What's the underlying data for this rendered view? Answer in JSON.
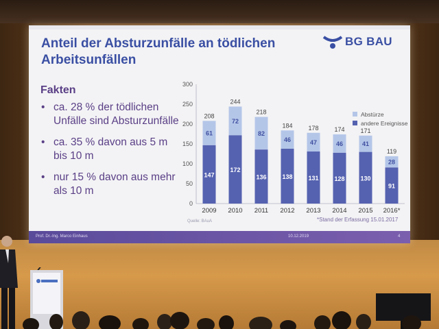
{
  "slide": {
    "title": "Anteil der Absturzunfälle an tödlichen Arbeitsunfällen",
    "logo_text": "BG BAU",
    "logo_icon": "bg-bau-logo-icon",
    "facts_heading": "Fakten",
    "bullets": [
      "ca. 28 % der tödlichen Unfälle sind Absturzunfälle",
      "ca. 35 % davon aus 5 m bis 10 m",
      "nur 15 % davon aus mehr als 10 m"
    ],
    "source": "Quelle: BAuA",
    "footnote": "*Stand der Erfassung 15.01.2017",
    "footer": {
      "author": "Prof. Dr.-Ing. Marco Einhaus",
      "date": "10.12.2019",
      "page": "4"
    }
  },
  "chart_data": {
    "type": "bar",
    "stacked": true,
    "categories": [
      "2009",
      "2010",
      "2011",
      "2012",
      "2013",
      "2014",
      "2015",
      "2016*"
    ],
    "series": [
      {
        "name": "andere Ereignisse",
        "values": [
          147,
          172,
          136,
          138,
          131,
          128,
          130,
          91
        ],
        "color": "#5562b0"
      },
      {
        "name": "Abstürze",
        "values": [
          61,
          72,
          82,
          46,
          47,
          46,
          41,
          28
        ],
        "color": "#b4c6e8"
      }
    ],
    "totals": [
      208,
      244,
      218,
      184,
      178,
      174,
      171,
      119
    ],
    "yticks": [
      0,
      50,
      100,
      150,
      200,
      250,
      300
    ],
    "ylim": [
      0,
      300
    ],
    "legend_position": "top-right",
    "legend_order": [
      "Abstürze",
      "andere Ereignisse"
    ]
  },
  "colors": {
    "title": "#3a4fa3",
    "text": "#5a3f86",
    "footer": "#6a52a4"
  }
}
